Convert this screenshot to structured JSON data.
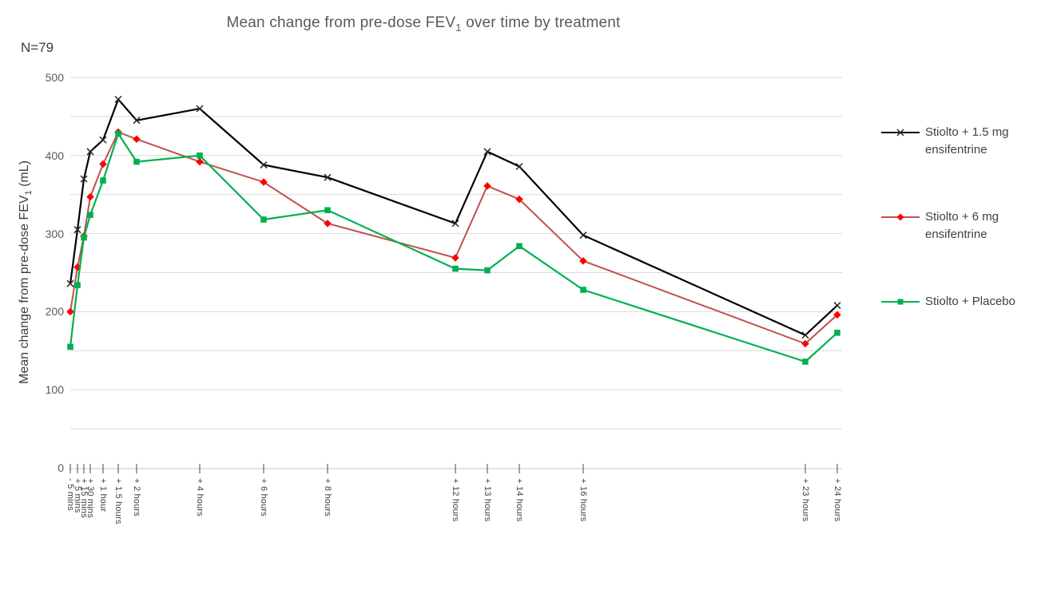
{
  "title": {
    "prefix": "Mean change from pre-dose FEV",
    "sub": "1",
    "suffix": " over time by treatment"
  },
  "annotation": "N=79",
  "y_axis": {
    "title_prefix": "Mean change from pre-dose FEV",
    "title_sub": "1",
    "title_suffix": " (mL)",
    "tick_labels": [
      "500",
      "400",
      "300",
      "200",
      "100",
      "0"
    ],
    "tick_values": [
      500,
      400,
      300,
      200,
      100,
      0
    ]
  },
  "x_axis": {
    "labels": [
      "- 5 mins",
      "+ 5 mins",
      "+ 15 mins",
      "+ 30 mins",
      "+ 1 hour",
      "+ 1.5 hours",
      "+ 2 hours",
      "+ 4 hours",
      "+ 6 hours",
      "+ 8 hours",
      "+ 12 hours",
      "+ 13 hours",
      "+ 14 hours",
      "+ 16 hours",
      "+ 23 hours",
      "+ 24 hours"
    ]
  },
  "colors": {
    "series1_line": "#000000",
    "series1_marker": "#262626",
    "series2_line": "#c0504d",
    "series2_marker": "#ff0000",
    "series3_line": "#00b050",
    "series3_marker": "#00b050",
    "gridline": "#d9d9d9",
    "axis_line": "#d2d2d2",
    "tick_mark": "#666666",
    "title_text": "#595959"
  },
  "chart_data": {
    "type": "line",
    "title": "Mean change from pre-dose FEV1 over time by treatment",
    "annotation": "N=79",
    "xlabel": "",
    "ylabel": "Mean change from pre-dose FEV1 (mL)",
    "ylim": [
      0,
      500
    ],
    "grid": "horizontal gridlines every 50 mL",
    "legend_position": "right",
    "categories": [
      "- 5 mins",
      "+ 5 mins",
      "+ 15 mins",
      "+ 30 mins",
      "+ 1 hour",
      "+ 1.5 hours",
      "+ 2 hours",
      "+ 4 hours",
      "+ 6 hours",
      "+ 8 hours",
      "+ 12 hours",
      "+ 13 hours",
      "+ 14 hours",
      "+ 16 hours",
      "+ 23 hours",
      "+ 24 hours"
    ],
    "series": [
      {
        "name": "Stiolto + 1.5 mg ensifentrine",
        "marker": "x",
        "line_color": "#000000",
        "marker_color": "#262626",
        "values": [
          236,
          305,
          370,
          405,
          420,
          472,
          445,
          460,
          388,
          372,
          313,
          405,
          386,
          298,
          170,
          208
        ]
      },
      {
        "name": "Stiolto + 6 mg ensifentrine",
        "marker": "diamond",
        "line_color": "#c0504d",
        "marker_color": "#ff0000",
        "values": [
          200,
          257,
          297,
          347,
          389,
          430,
          421,
          392,
          366,
          313,
          269,
          361,
          344,
          265,
          159,
          196
        ]
      },
      {
        "name": "Stiolto + Placebo",
        "marker": "square",
        "line_color": "#00b050",
        "marker_color": "#00b050",
        "values": [
          155,
          234,
          295,
          324,
          368,
          428,
          392,
          400,
          318,
          330,
          255,
          253,
          284,
          228,
          136,
          173
        ]
      }
    ]
  }
}
